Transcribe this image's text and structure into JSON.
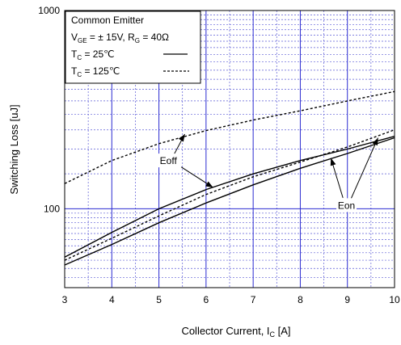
{
  "chart_data": {
    "type": "line",
    "xlabel": "Collector Current, I",
    "xlabel_sub": "C",
    "xlabel_unit": " [A]",
    "ylabel": "Switching Loss [uJ]",
    "xlim": [
      3,
      10
    ],
    "ylim": [
      40,
      1000
    ],
    "y_scale": "log",
    "x_ticks": [
      "3",
      "4",
      "5",
      "6",
      "7",
      "8",
      "9",
      "10"
    ],
    "y_ticks": [
      {
        "value": 100,
        "label": "100"
      },
      {
        "value": 1000,
        "label": "1000"
      }
    ],
    "grid": true,
    "legend_box": {
      "line1": "Common Emitter",
      "line2": {
        "v": "V",
        "v_sub": "GE",
        "v_rest": " = ±  15V, R",
        "r_sub": "G",
        "r_rest": " = 40Ω"
      },
      "line3": {
        "t": "T",
        "t_sub": "C",
        "rest": " =   25℃"
      },
      "line4": {
        "t": "T",
        "t_sub": "C",
        "rest": " = 125℃"
      }
    },
    "series": [
      {
        "style": "solid",
        "x": [
          3,
          4,
          5,
          6,
          7,
          8,
          9,
          10
        ],
        "values": [
          57,
          76,
          100,
          125,
          150,
          175,
          200,
          232
        ]
      },
      {
        "style": "solid",
        "x": [
          3,
          4,
          5,
          6,
          7,
          8,
          9,
          10
        ],
        "values": [
          52,
          66,
          85,
          107,
          132,
          160,
          190,
          228
        ]
      },
      {
        "style": "dashed",
        "x": [
          3,
          4,
          5,
          6,
          7,
          8,
          9,
          10
        ],
        "values": [
          134,
          175,
          213,
          248,
          280,
          312,
          350,
          390
        ]
      },
      {
        "style": "dashed",
        "x": [
          3,
          4,
          5,
          6,
          7,
          8,
          9,
          10
        ],
        "values": [
          55,
          71,
          92,
          118,
          145,
          172,
          205,
          250
        ]
      }
    ],
    "annotations": [
      {
        "text": "Eoff",
        "x": 5.2,
        "y": 168,
        "arrows": [
          [
            5.55,
            238
          ],
          [
            6.15,
            128
          ]
        ]
      },
      {
        "text": "Eon",
        "x": 8.98,
        "y": 100,
        "arrows": [
          [
            8.65,
            180
          ],
          [
            9.65,
            228
          ]
        ]
      }
    ]
  }
}
